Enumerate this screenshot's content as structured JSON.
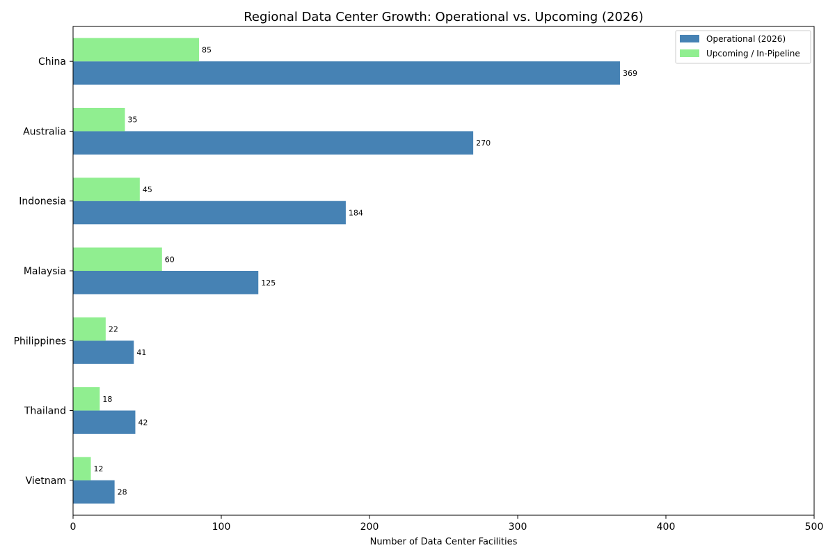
{
  "chart_data": {
    "type": "bar",
    "orientation": "horizontal",
    "title": "Regional Data Center Growth: Operational vs. Upcoming (2026)",
    "xlabel": "Number of Data Center Facilities",
    "ylabel": "",
    "xlim": [
      0,
      500
    ],
    "xticks": [
      0,
      100,
      200,
      300,
      400,
      500
    ],
    "categories": [
      "China",
      "Australia",
      "Indonesia",
      "Malaysia",
      "Philippines",
      "Thailand",
      "Vietnam"
    ],
    "series": [
      {
        "name": "Operational (2026)",
        "color": "#4682b4",
        "values": [
          369,
          270,
          184,
          125,
          41,
          42,
          28
        ]
      },
      {
        "name": "Upcoming / In-Pipeline",
        "color": "#90ee90",
        "values": [
          85,
          35,
          45,
          60,
          22,
          18,
          12
        ]
      }
    ],
    "legend_position": "top-right",
    "grid": false
  }
}
